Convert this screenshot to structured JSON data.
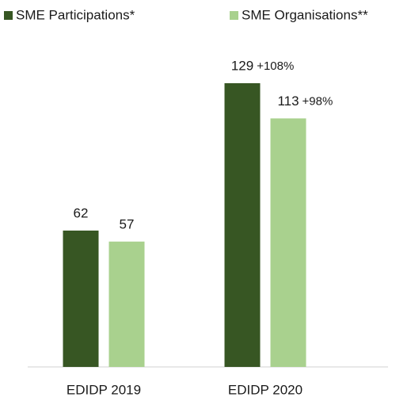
{
  "chart_data": {
    "type": "bar",
    "categories": [
      "EDIDP 2019",
      "EDIDP 2020"
    ],
    "series": [
      {
        "name": "SME Participations*",
        "color": "#375623",
        "values": [
          62,
          129
        ],
        "annotations": [
          null,
          "+108%"
        ]
      },
      {
        "name": "SME Organisations**",
        "color": "#a9d18e",
        "values": [
          57,
          113
        ],
        "annotations": [
          null,
          "+98%"
        ]
      }
    ],
    "annotation_color": "#e00000",
    "legend": "top"
  }
}
